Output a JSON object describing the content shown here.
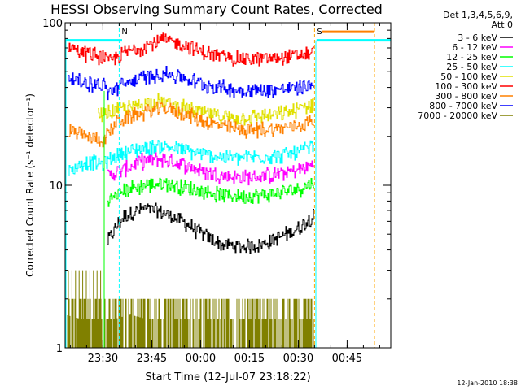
{
  "chart_data": {
    "type": "line",
    "title": "HESSI Observing Summary Count Rates, Corrected",
    "xlabel": "Start Time (12-Jul-07 23:18:22)",
    "ylabel": "Corrected Count Rate (s⁻¹ detector⁻¹)",
    "xaxis_unit": "minutes since 23:18:22",
    "xlim": [
      0,
      100
    ],
    "ylim": [
      1,
      100
    ],
    "yscale": "log",
    "grid": false,
    "legend_position": "top-right",
    "legend_header": [
      "Det 1,3,4,5,6,9,",
      "Att 0"
    ],
    "xticks": [
      {
        "t": 11.6,
        "label": "23:30"
      },
      {
        "t": 26.6,
        "label": "23:45"
      },
      {
        "t": 41.6,
        "label": "00:00"
      },
      {
        "t": 56.6,
        "label": "00:15"
      },
      {
        "t": 71.6,
        "label": "00:30"
      },
      {
        "t": 86.6,
        "label": "00:45"
      }
    ],
    "yticks": [
      {
        "v": 1,
        "label": "1"
      },
      {
        "v": 10,
        "label": "10"
      },
      {
        "v": 100,
        "label": "100"
      }
    ],
    "markers": [
      {
        "t": 16.6,
        "label": "N",
        "color": "#00ffff"
      },
      {
        "t": 76.6,
        "label": "S",
        "color": "#ffa500"
      },
      {
        "t": 95.0,
        "label": "",
        "color": "#ffa500"
      }
    ],
    "status_bars": [
      {
        "t0": 0,
        "t1": 17.5,
        "v": 78,
        "color": "#00ffff"
      },
      {
        "t0": 78.8,
        "t1": 95.0,
        "v": 88,
        "color": "#ff8000"
      },
      {
        "t0": 77.2,
        "t1": 100,
        "v": 78,
        "color": "#00ffff"
      }
    ],
    "data_gap": {
      "t0": 77.0,
      "t1": 99.5
    },
    "series": [
      {
        "name": "3 - 6 keV",
        "color": "#000000",
        "x": [
          13,
          18,
          24,
          30,
          36,
          42,
          48,
          54,
          60,
          66,
          72,
          76.4
        ],
        "y": [
          4.5,
          6.5,
          7.2,
          6.8,
          6.0,
          5.0,
          4.3,
          4.2,
          4.3,
          4.8,
          5.5,
          6.6
        ]
      },
      {
        "name": "6 - 12 keV",
        "color": "#ff00ff",
        "x": [
          13,
          18,
          24,
          30,
          36,
          42,
          48,
          54,
          60,
          66,
          72,
          76.4
        ],
        "y": [
          11.5,
          12.5,
          14.2,
          14.5,
          13.5,
          12.2,
          11.5,
          11.2,
          11.3,
          11.8,
          12.5,
          13.5
        ]
      },
      {
        "name": "12 - 25 keV",
        "color": "#00ff00",
        "x": [
          13,
          18,
          24,
          30,
          36,
          42,
          48,
          54,
          60,
          66,
          72,
          76.4
        ],
        "y": [
          8.0,
          9.3,
          10.0,
          10.3,
          9.8,
          9.2,
          8.7,
          8.6,
          8.7,
          9.0,
          9.6,
          10.5
        ]
      },
      {
        "name": "25 - 50 keV",
        "color": "#00ffff",
        "x": [
          1,
          6,
          12,
          16,
          24,
          30,
          36,
          42,
          48,
          54,
          60,
          66,
          72,
          76.4
        ],
        "y": [
          12.0,
          14.0,
          13.5,
          15.5,
          17.0,
          17.5,
          16.5,
          15.5,
          15.0,
          14.8,
          15.0,
          15.3,
          16.0,
          17.5
        ]
      },
      {
        "name": "50 - 100 keV",
        "color": "#e0e000",
        "x": [
          10,
          16,
          22,
          28,
          34,
          40,
          46,
          52,
          58,
          64,
          70,
          76.4
        ],
        "y": [
          27,
          29,
          31,
          33,
          31,
          28.5,
          27,
          26,
          26.5,
          27,
          28.5,
          32
        ]
      },
      {
        "name": "100 - 300 keV",
        "color": "#ff0000",
        "x": [
          1,
          6,
          12,
          13,
          18,
          24,
          30,
          36,
          42,
          48,
          54,
          60,
          66,
          72,
          76.4
        ],
        "y": [
          72,
          65,
          62,
          57,
          65,
          72,
          78,
          74,
          66,
          62,
          60,
          60,
          61,
          63,
          66
        ]
      },
      {
        "name": "300 - 800 keV",
        "color": "#ff8000",
        "x": [
          1,
          6,
          12,
          16,
          24,
          30,
          36,
          42,
          48,
          54,
          60,
          66,
          72,
          76.4
        ],
        "y": [
          22,
          20,
          19,
          25,
          28,
          30,
          28,
          25,
          23,
          22,
          22,
          22.5,
          23.5,
          25
        ]
      },
      {
        "name": "800 - 7000 keV",
        "color": "#0000ff",
        "x": [
          1,
          6,
          12,
          13,
          18,
          24,
          30,
          36,
          42,
          48,
          54,
          60,
          66,
          72,
          76.4
        ],
        "y": [
          46,
          43,
          41,
          37,
          42,
          46,
          49,
          46,
          42,
          40,
          38.5,
          38.5,
          39,
          40,
          42
        ]
      },
      {
        "name": "7000 - 20000 keV",
        "color": "#808000",
        "x": [
          0,
          5,
          10,
          15,
          20,
          25,
          30,
          35,
          40,
          45,
          50,
          55,
          60,
          65,
          70,
          76.4
        ],
        "y": [
          1.6,
          1.5,
          1.5,
          1.5,
          1.6,
          1.5,
          1.5,
          1.5,
          1.5,
          1.5,
          1.5,
          1.5,
          1.5,
          1.5,
          1.5,
          1.5
        ]
      }
    ]
  },
  "footer": {
    "date": "12-Jan-2010 18:38"
  }
}
